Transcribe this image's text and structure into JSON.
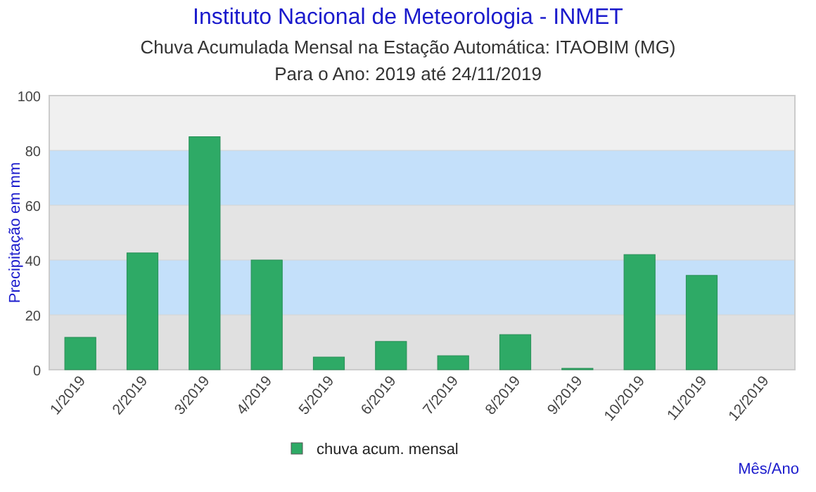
{
  "chart_data": {
    "type": "bar",
    "title": "Instituto Nacional de Meteorologia - INMET",
    "subtitle": "Chuva Acumulada Mensal na Estação Automática: ITAOBIM (MG)\nPara o Ano: 2019 até 24/11/2019",
    "xlabel": "Mês/Ano",
    "ylabel": "Precipitação em mm",
    "categories": [
      "1/2019",
      "2/2019",
      "3/2019",
      "4/2019",
      "5/2019",
      "6/2019",
      "7/2019",
      "8/2019",
      "9/2019",
      "10/2019",
      "11/2019",
      "12/2019"
    ],
    "series": [
      {
        "name": "chuva acum. mensal",
        "color": "#2eaa66",
        "values": [
          11.8,
          42.6,
          85,
          40,
          4.6,
          10.3,
          5.1,
          12.8,
          0.5,
          42,
          34.4,
          null
        ]
      }
    ],
    "bands": [
      {
        "axis": "y",
        "from": 0,
        "to": 20,
        "color": "#e0e0e0"
      },
      {
        "axis": "y",
        "from": 20,
        "to": 40,
        "color": "#c4e0fa"
      },
      {
        "axis": "y",
        "from": 40,
        "to": 60,
        "color": "#e4e4e4"
      },
      {
        "axis": "y",
        "from": 60,
        "to": 80,
        "color": "#c4e0fa"
      },
      {
        "axis": "y",
        "from": 80,
        "to": 100,
        "color": "#f0f0f0"
      }
    ],
    "ylim": [
      0,
      100
    ],
    "yticks": [
      0,
      20,
      40,
      60,
      80,
      100
    ],
    "grid": true,
    "legend": "bottom"
  }
}
